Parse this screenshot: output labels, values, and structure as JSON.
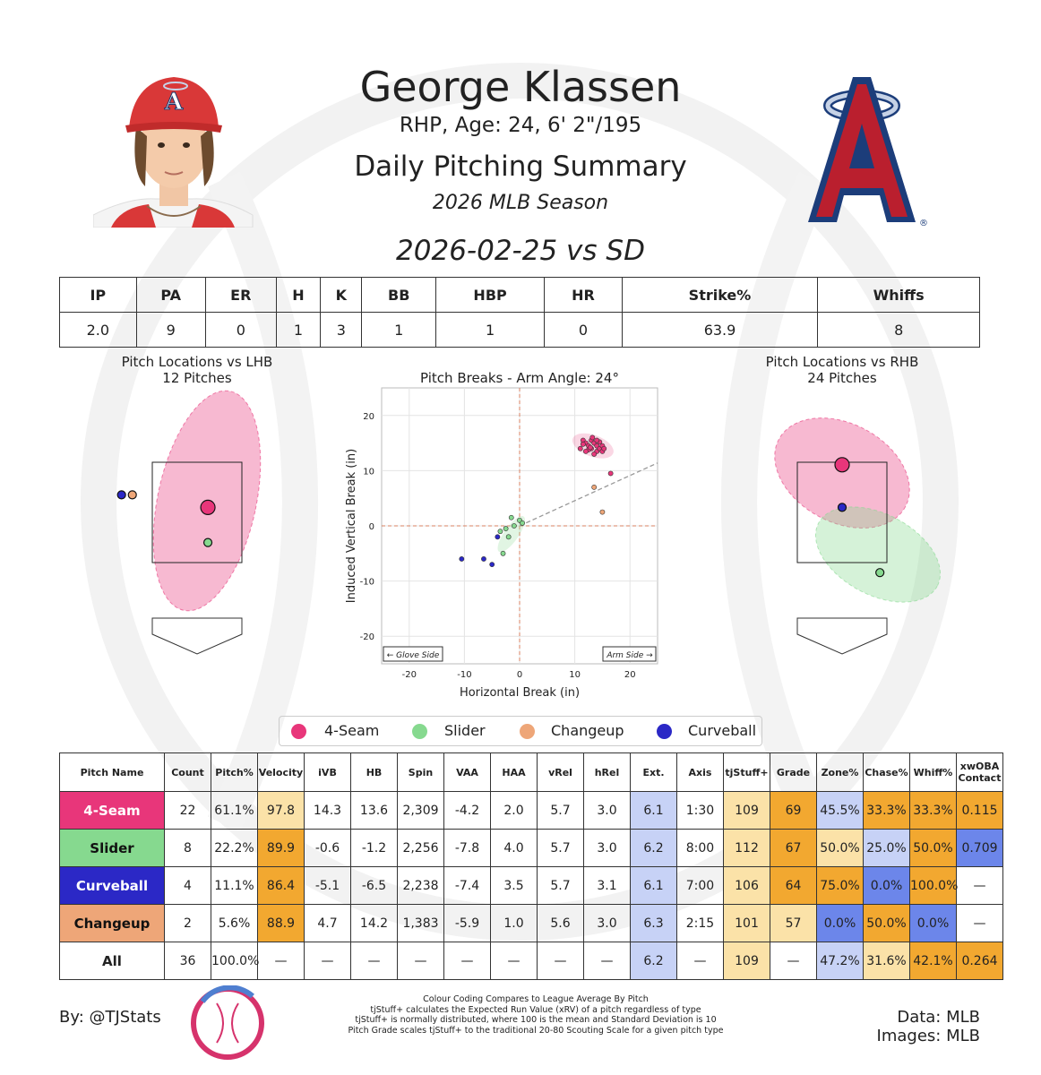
{
  "header": {
    "name": "George Klassen",
    "info": "RHP, Age: 24, 6' 2\"/195",
    "report": "Daily Pitching Summary",
    "season": "2026 MLB Season",
    "game": "2026-02-25 vs SD"
  },
  "stat_line": {
    "headers": [
      "IP",
      "PA",
      "ER",
      "H",
      "K",
      "BB",
      "HBP",
      "HR",
      "Strike%",
      "Whiffs"
    ],
    "values": [
      "2.0",
      "9",
      "0",
      "1",
      "3",
      "1",
      "1",
      "0",
      "63.9",
      "8"
    ]
  },
  "colors": {
    "4-Seam": "#e8367a",
    "Slider": "#86d98f",
    "Changeup": "#eea678",
    "Curveball": "#2b28c6",
    "good_strong": "#f2a830",
    "good_light": "#fbe2a8",
    "bad_strong": "#6c86ea",
    "bad_light": "#c7d2f6"
  },
  "chart_data": [
    {
      "type": "scatter",
      "title": "Pitch Locations vs LHB\n12 Pitches",
      "points": [
        {
          "pitch": "4-Seam",
          "x": 0.2,
          "y": 2.6,
          "size": "large"
        },
        {
          "pitch": "Slider",
          "x": 0.2,
          "y": 1.9,
          "size": "small"
        },
        {
          "pitch": "Changeup",
          "x": -1.2,
          "y": 2.85,
          "size": "small"
        },
        {
          "pitch": "Curveball",
          "x": -1.4,
          "y": 2.85,
          "size": "small"
        }
      ]
    },
    {
      "type": "scatter",
      "title": "Pitch Breaks - Arm Angle: 24°",
      "xlabel": "Horizontal Break (in)",
      "ylabel": "Induced Vertical Break (in)",
      "xlim": [
        -25,
        25
      ],
      "ylim": [
        -25,
        25
      ],
      "xticks": [
        -20,
        -10,
        0,
        10,
        20
      ],
      "yticks": [
        20,
        10,
        0,
        -10,
        -20
      ],
      "annotations": [
        "← Glove Side",
        "Arm Side →"
      ],
      "series": [
        {
          "name": "4-Seam",
          "points": [
            [
              11.5,
              15.5
            ],
            [
              12,
              15
            ],
            [
              12.5,
              14.5
            ],
            [
              13,
              15.5
            ],
            [
              13,
              14
            ],
            [
              13.5,
              15
            ],
            [
              14,
              14.5
            ],
            [
              14,
              13.5
            ],
            [
              14.5,
              14
            ],
            [
              15,
              14.5
            ],
            [
              15,
              13.5
            ],
            [
              12.5,
              13.8
            ],
            [
              13.5,
              13
            ],
            [
              12,
              13.5
            ],
            [
              11,
              14
            ],
            [
              11.5,
              14.8
            ],
            [
              14.5,
              15.2
            ],
            [
              13.2,
              16
            ],
            [
              12.8,
              14.2
            ],
            [
              14,
              15.5
            ],
            [
              15.3,
              14
            ],
            [
              16.5,
              9.5
            ]
          ]
        },
        {
          "name": "Slider",
          "points": [
            [
              -1.5,
              1.5
            ],
            [
              0,
              1
            ],
            [
              0.5,
              0.5
            ],
            [
              -1,
              0
            ],
            [
              -2.5,
              -0.5
            ],
            [
              -2,
              -2
            ],
            [
              -3.5,
              -1
            ],
            [
              -3,
              -5
            ]
          ]
        },
        {
          "name": "Changeup",
          "points": [
            [
              13.5,
              7
            ],
            [
              15,
              2.5
            ]
          ]
        },
        {
          "name": "Curveball",
          "points": [
            [
              -10.5,
              -6
            ],
            [
              -6.5,
              -6
            ],
            [
              -5,
              -7
            ],
            [
              -4,
              -2
            ]
          ]
        }
      ]
    },
    {
      "type": "scatter",
      "title": "Pitch Locations vs RHB\n24 Pitches",
      "points": [
        {
          "pitch": "4-Seam",
          "x": 0.0,
          "y": 3.45,
          "size": "large"
        },
        {
          "pitch": "Curveball",
          "x": 0.0,
          "y": 2.6,
          "size": "small"
        },
        {
          "pitch": "Slider",
          "x": 0.7,
          "y": 1.3,
          "size": "small"
        }
      ]
    }
  ],
  "pitch_table": {
    "headers": [
      "Pitch Name",
      "Count",
      "Pitch%",
      "Velocity",
      "iVB",
      "HB",
      "Spin",
      "VAA",
      "HAA",
      "vRel",
      "hRel",
      "Ext.",
      "Axis",
      "tjStuff+",
      "Grade",
      "Zone%",
      "Chase%",
      "Whiff%",
      "xwOBA\nContact"
    ],
    "rows": [
      {
        "pitch": "4-Seam",
        "cells": [
          "22",
          "61.1%",
          "97.8",
          "14.3",
          "13.6",
          "2,309",
          "-4.2",
          "2.0",
          "5.7",
          "3.0",
          "6.1",
          "1:30",
          "109",
          "69",
          "45.5%",
          "33.3%",
          "33.3%",
          "0.115"
        ]
      },
      {
        "pitch": "Slider",
        "cells": [
          "8",
          "22.2%",
          "89.9",
          "-0.6",
          "-1.2",
          "2,256",
          "-7.8",
          "4.0",
          "5.7",
          "3.0",
          "6.2",
          "8:00",
          "112",
          "67",
          "50.0%",
          "25.0%",
          "50.0%",
          "0.709"
        ]
      },
      {
        "pitch": "Curveball",
        "cells": [
          "4",
          "11.1%",
          "86.4",
          "-5.1",
          "-6.5",
          "2,238",
          "-7.4",
          "3.5",
          "5.7",
          "3.1",
          "6.1",
          "7:00",
          "106",
          "64",
          "75.0%",
          "0.0%",
          "100.0%",
          "—"
        ]
      },
      {
        "pitch": "Changeup",
        "cells": [
          "2",
          "5.6%",
          "88.9",
          "4.7",
          "14.2",
          "1,383",
          "-5.9",
          "1.0",
          "5.6",
          "3.0",
          "6.3",
          "2:15",
          "101",
          "57",
          "0.0%",
          "50.0%",
          "0.0%",
          "—"
        ]
      },
      {
        "pitch": "All",
        "cells": [
          "36",
          "100.0%",
          "—",
          "—",
          "—",
          "—",
          "—",
          "—",
          "—",
          "—",
          "6.2",
          "—",
          "109",
          "—",
          "47.2%",
          "31.6%",
          "42.1%",
          "0.264"
        ]
      }
    ]
  },
  "legend": [
    "4-Seam",
    "Slider",
    "Changeup",
    "Curveball"
  ],
  "footer": {
    "by": "By: @TJStats",
    "notes": [
      "Colour Coding Compares to League Average By Pitch",
      "tjStuff+ calculates the Expected Run Value (xRV) of a pitch regardless of type",
      "tjStuff+ is normally distributed, where 100 is the mean and Standard Deviation is 10",
      "Pitch Grade scales tjStuff+ to the traditional 20-80 Scouting Scale for a given pitch type"
    ],
    "data": "Data: MLB",
    "images": "Images: MLB"
  }
}
